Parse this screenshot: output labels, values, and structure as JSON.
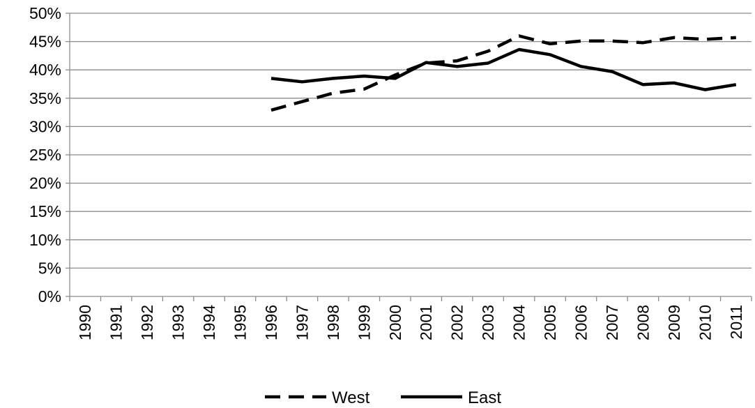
{
  "chart_data": {
    "type": "line",
    "title": "",
    "xlabel": "",
    "ylabel": "",
    "x": [
      "1990",
      "1991",
      "1992",
      "1993",
      "1994",
      "1995",
      "1996",
      "1997",
      "1998",
      "1999",
      "2000",
      "2001",
      "2002",
      "2003",
      "2004",
      "2005",
      "2006",
      "2007",
      "2008",
      "2009",
      "2010",
      "2011"
    ],
    "ylim": [
      0,
      50
    ],
    "y_ticks": [
      "0%",
      "5%",
      "10%",
      "15%",
      "20%",
      "25%",
      "30%",
      "35%",
      "40%",
      "45%",
      "50%"
    ],
    "grid": true,
    "legend_position": "bottom",
    "series": [
      {
        "name": "West",
        "style": "dashed",
        "color": "#000000",
        "values": [
          null,
          null,
          null,
          null,
          null,
          null,
          32.9,
          34.4,
          35.9,
          36.6,
          39.1,
          41.2,
          41.6,
          43.3,
          46.0,
          44.6,
          45.1,
          45.1,
          44.8,
          45.7,
          45.4,
          45.7
        ]
      },
      {
        "name": "East",
        "style": "solid",
        "color": "#000000",
        "values": [
          null,
          null,
          null,
          null,
          null,
          null,
          38.5,
          37.9,
          38.5,
          38.9,
          38.5,
          41.3,
          40.6,
          41.2,
          43.6,
          42.7,
          40.6,
          39.7,
          37.4,
          37.7,
          36.5,
          37.4
        ]
      }
    ]
  }
}
